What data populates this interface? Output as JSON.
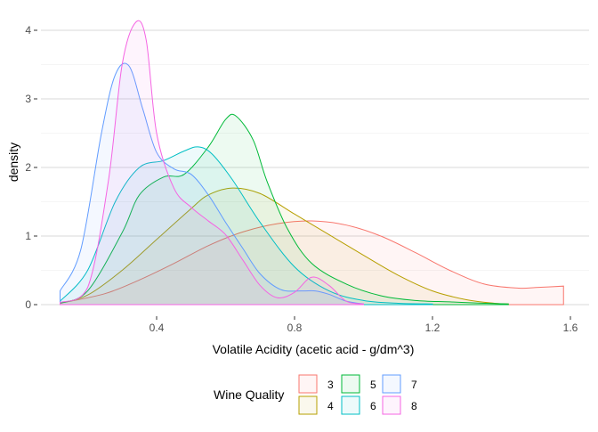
{
  "chart_data": {
    "type": "area",
    "subtype": "density",
    "xlabel": "Volatile Acidity (acetic acid - g/dm^3)",
    "ylabel": "density",
    "xlim": [
      0.12,
      1.58
    ],
    "ylim": [
      0,
      4.15
    ],
    "xticks": [
      0.4,
      0.8,
      1.2,
      1.6
    ],
    "xtick_labels": [
      "0.4",
      "0.8",
      "1.2",
      "1.6"
    ],
    "yticks": [
      0,
      1,
      2,
      3,
      4
    ],
    "ytick_labels": [
      "0",
      "1",
      "2",
      "3",
      "4"
    ],
    "grid": true,
    "legend": {
      "title": "Wine Quality",
      "position": "bottom",
      "entries": [
        "3",
        "4",
        "5",
        "6",
        "7",
        "8"
      ]
    },
    "series": [
      {
        "name": "3",
        "color": "#F8766D",
        "x": [
          0.12,
          0.25,
          0.35,
          0.45,
          0.55,
          0.65,
          0.75,
          0.85,
          0.95,
          1.05,
          1.15,
          1.25,
          1.35,
          1.45,
          1.5,
          1.58
        ],
        "y": [
          0.02,
          0.16,
          0.36,
          0.6,
          0.86,
          1.06,
          1.18,
          1.22,
          1.16,
          1.0,
          0.76,
          0.5,
          0.3,
          0.24,
          0.25,
          0.27
        ]
      },
      {
        "name": "4",
        "color": "#B79F00",
        "x": [
          0.12,
          0.2,
          0.3,
          0.4,
          0.5,
          0.55,
          0.62,
          0.7,
          0.8,
          0.9,
          1.0,
          1.1,
          1.2,
          1.3,
          1.38,
          1.42
        ],
        "y": [
          0.02,
          0.14,
          0.5,
          0.95,
          1.4,
          1.6,
          1.7,
          1.62,
          1.32,
          1.02,
          0.72,
          0.43,
          0.2,
          0.07,
          0.02,
          0.01
        ]
      },
      {
        "name": "5",
        "color": "#00BA38",
        "x": [
          0.12,
          0.2,
          0.3,
          0.35,
          0.42,
          0.48,
          0.55,
          0.6,
          0.63,
          0.68,
          0.72,
          0.78,
          0.85,
          0.95,
          1.05,
          1.15,
          1.25,
          1.35,
          1.42
        ],
        "y": [
          0.02,
          0.2,
          1.05,
          1.6,
          1.86,
          1.9,
          2.3,
          2.7,
          2.75,
          2.4,
          1.8,
          1.1,
          0.6,
          0.3,
          0.13,
          0.06,
          0.04,
          0.02,
          0.01
        ]
      },
      {
        "name": "6",
        "color": "#00BFC4",
        "x": [
          0.12,
          0.2,
          0.28,
          0.35,
          0.42,
          0.48,
          0.52,
          0.56,
          0.62,
          0.7,
          0.8,
          0.9,
          1.0,
          1.1,
          1.2
        ],
        "y": [
          0.05,
          0.5,
          1.5,
          2.0,
          2.1,
          2.24,
          2.3,
          2.2,
          1.82,
          1.2,
          0.55,
          0.2,
          0.06,
          0.02,
          0.01
        ]
      },
      {
        "name": "7",
        "color": "#619CFF",
        "x": [
          0.12,
          0.18,
          0.24,
          0.28,
          0.32,
          0.36,
          0.4,
          0.45,
          0.5,
          0.55,
          0.6,
          0.65,
          0.7,
          0.76,
          0.82,
          0.86,
          0.9,
          0.95,
          1.0
        ],
        "y": [
          0.2,
          0.8,
          2.5,
          3.35,
          3.48,
          2.85,
          2.22,
          1.98,
          1.9,
          1.6,
          1.2,
          0.82,
          0.45,
          0.22,
          0.2,
          0.2,
          0.15,
          0.05,
          0.01
        ]
      },
      {
        "name": "8",
        "color": "#F564E3",
        "x": [
          0.12,
          0.2,
          0.26,
          0.3,
          0.34,
          0.37,
          0.4,
          0.45,
          0.5,
          0.55,
          0.6,
          0.65,
          0.7,
          0.75,
          0.8,
          0.85,
          0.9,
          0.95,
          1.0
        ],
        "y": [
          0.03,
          0.25,
          1.8,
          3.5,
          4.12,
          3.85,
          2.5,
          1.7,
          1.42,
          1.22,
          1.02,
          0.65,
          0.28,
          0.1,
          0.18,
          0.4,
          0.28,
          0.05,
          0.01
        ]
      }
    ]
  }
}
